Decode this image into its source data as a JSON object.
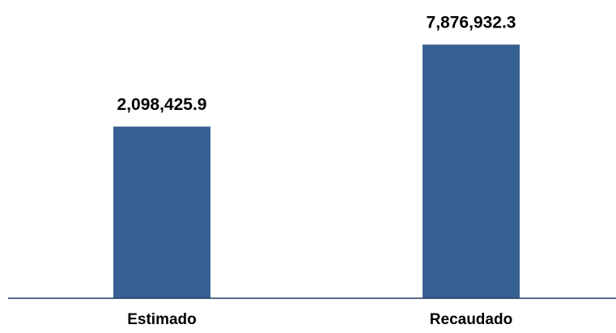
{
  "chart_data": {
    "type": "bar",
    "categories": [
      "Estimado",
      "Recaudado"
    ],
    "values": [
      2098425.9,
      7876932.3
    ],
    "value_labels": [
      "2,098,425.9",
      "7,876,932.3"
    ],
    "color": "#376092",
    "ylim": [
      -10000000,
      8000000
    ]
  }
}
